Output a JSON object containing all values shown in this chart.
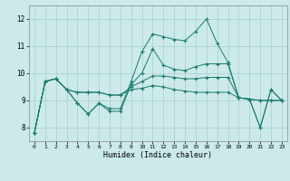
{
  "xlabel": "Humidex (Indice chaleur)",
  "background_color": "#cceaea",
  "grid_color": "#aacccc",
  "line_color": "#1a7a6e",
  "xlim": [
    -0.5,
    23.5
  ],
  "ylim": [
    7.5,
    12.5
  ],
  "yticks": [
    8,
    9,
    10,
    11,
    12
  ],
  "xticks": [
    0,
    1,
    2,
    3,
    4,
    5,
    6,
    7,
    8,
    9,
    10,
    11,
    12,
    13,
    14,
    15,
    16,
    17,
    18,
    19,
    20,
    21,
    22,
    23
  ],
  "series": [
    [
      7.8,
      9.7,
      9.8,
      9.4,
      8.9,
      8.5,
      8.9,
      8.7,
      8.7,
      9.7,
      10.8,
      11.45,
      11.35,
      11.25,
      11.2,
      11.55,
      12.0,
      11.1,
      10.4,
      9.1,
      9.05,
      8.0,
      9.4,
      9.0
    ],
    [
      7.8,
      9.7,
      9.8,
      9.4,
      8.9,
      8.5,
      8.9,
      8.6,
      8.6,
      9.6,
      10.0,
      10.9,
      10.3,
      10.15,
      10.1,
      10.25,
      10.35,
      10.35,
      10.35,
      9.1,
      9.05,
      8.0,
      9.4,
      9.0
    ],
    [
      7.8,
      9.7,
      9.8,
      9.4,
      9.3,
      9.3,
      9.3,
      9.2,
      9.2,
      9.5,
      9.7,
      9.9,
      9.9,
      9.85,
      9.8,
      9.8,
      9.85,
      9.85,
      9.85,
      9.1,
      9.05,
      9.0,
      9.0,
      9.0
    ],
    [
      7.8,
      9.7,
      9.8,
      9.4,
      9.3,
      9.3,
      9.3,
      9.2,
      9.2,
      9.4,
      9.45,
      9.55,
      9.5,
      9.4,
      9.35,
      9.3,
      9.3,
      9.3,
      9.3,
      9.1,
      9.05,
      9.0,
      9.0,
      9.0
    ]
  ]
}
